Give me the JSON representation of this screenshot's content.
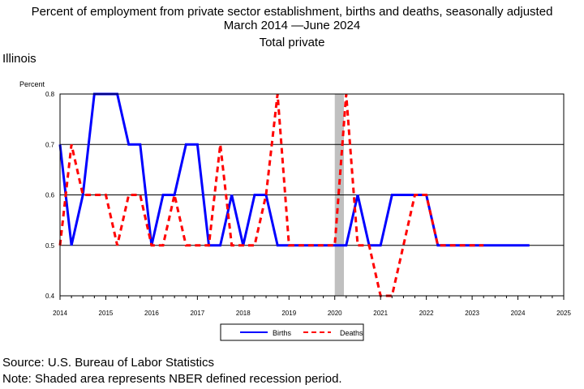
{
  "header": {
    "title_line1": "Percent of employment from private sector establishment, births and deaths, seasonally adjusted",
    "title_line2": "March 2014 —June 2024",
    "title_line3": "Total private",
    "state": "Illinois"
  },
  "footer": {
    "source": "Source: U.S. Bureau of Labor Statistics",
    "note": "Note: Shaded area represents NBER defined recession period."
  },
  "chart_data": {
    "type": "line",
    "ylabel": "Percent",
    "ylim": [
      0.4,
      0.8
    ],
    "yticks": [
      "0.4",
      "0.5",
      "0.6",
      "0.7",
      "0.8"
    ],
    "xlim": [
      2014,
      2025
    ],
    "xticks": [
      "2014",
      "2015",
      "2016",
      "2017",
      "2018",
      "2019",
      "2020",
      "2021",
      "2022",
      "2023",
      "2024",
      "2025"
    ],
    "grid": "horizontal",
    "legend_position": "bottom",
    "recession": {
      "start": 2020.0,
      "end": 2020.2,
      "color": "#c0c0c0"
    },
    "series": [
      {
        "name": "Births",
        "color": "#0000ff",
        "style": "solid",
        "x": [
          2014.0,
          2014.25,
          2014.5,
          2014.75,
          2015.0,
          2015.25,
          2015.5,
          2015.75,
          2016.0,
          2016.25,
          2016.5,
          2016.75,
          2017.0,
          2017.25,
          2017.5,
          2017.75,
          2018.0,
          2018.25,
          2018.5,
          2018.75,
          2019.0,
          2019.25,
          2019.5,
          2019.75,
          2020.0,
          2020.25,
          2020.5,
          2020.75,
          2021.0,
          2021.25,
          2021.5,
          2021.75,
          2022.0,
          2022.25,
          2022.5,
          2022.75,
          2023.0,
          2023.25,
          2023.5,
          2023.75,
          2024.0,
          2024.25
        ],
        "values": [
          0.7,
          0.5,
          0.6,
          0.8,
          0.8,
          0.8,
          0.7,
          0.7,
          0.5,
          0.6,
          0.6,
          0.7,
          0.7,
          0.5,
          0.5,
          0.6,
          0.5,
          0.6,
          0.6,
          0.5,
          0.5,
          0.5,
          0.5,
          0.5,
          0.5,
          0.5,
          0.6,
          0.5,
          0.5,
          0.6,
          0.6,
          0.6,
          0.6,
          0.5,
          0.5,
          0.5,
          0.5,
          0.5,
          0.5,
          0.5,
          0.5,
          0.5
        ]
      },
      {
        "name": "Deaths",
        "color": "#ff0000",
        "style": "dashed",
        "x": [
          2014.0,
          2014.25,
          2014.5,
          2014.75,
          2015.0,
          2015.25,
          2015.5,
          2015.75,
          2016.0,
          2016.25,
          2016.5,
          2016.75,
          2017.0,
          2017.25,
          2017.5,
          2017.75,
          2018.0,
          2018.25,
          2018.5,
          2018.75,
          2019.0,
          2019.25,
          2019.5,
          2019.75,
          2020.0,
          2020.25,
          2020.5,
          2020.75,
          2021.0,
          2021.25,
          2021.5,
          2021.75,
          2022.0,
          2022.25,
          2022.5,
          2022.75,
          2023.0,
          2023.25
        ],
        "values": [
          0.5,
          0.7,
          0.6,
          0.6,
          0.6,
          0.5,
          0.6,
          0.6,
          0.5,
          0.5,
          0.6,
          0.5,
          0.5,
          0.5,
          0.7,
          0.5,
          0.5,
          0.5,
          0.6,
          0.8,
          0.5,
          0.5,
          0.5,
          0.5,
          0.5,
          0.8,
          0.5,
          0.5,
          0.4,
          0.4,
          0.5,
          0.6,
          0.6,
          0.5,
          0.5,
          0.5,
          0.5,
          0.5
        ]
      }
    ]
  }
}
